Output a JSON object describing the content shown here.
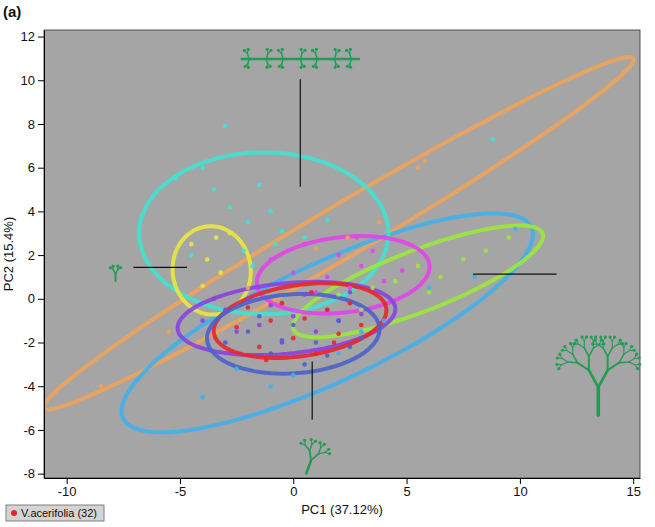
{
  "chart_data": {
    "type": "scatter",
    "panel_label": "(a)",
    "x_label": "PC1 (37.12%)",
    "y_label": "PC2 (15.4%)",
    "xlim": [
      -11,
      15.3
    ],
    "ylim": [
      -8.2,
      12.3
    ],
    "xticks": [
      -10,
      -5,
      0,
      5,
      10,
      15
    ],
    "yticks": [
      -8,
      -6,
      -4,
      -2,
      0,
      2,
      4,
      6,
      8,
      10,
      12
    ],
    "grid": false,
    "legend": "bottom-left",
    "marker": "circle",
    "series": [
      {
        "color": "#f0a35a",
        "x": [
          -5.5,
          -2,
          1,
          3.8,
          5.5,
          5.8,
          -8.5,
          2.4
        ],
        "y": [
          -1.5,
          0.5,
          2.3,
          3.5,
          6,
          6.3,
          -4,
          2.8
        ],
        "ellipse": {
          "center": [
            2,
            3
          ],
          "axis1": [
            13,
            8
          ],
          "axis2": [
            -0.6,
            1.0
          ]
        }
      },
      {
        "color": "#3fb0ec",
        "x": [
          -4,
          -2.5,
          0,
          2,
          4,
          6,
          8,
          -1,
          3,
          9.8
        ],
        "y": [
          -4.5,
          -3.2,
          -3.5,
          -2.5,
          -1,
          0.5,
          1,
          -4,
          -1.5,
          3.2
        ],
        "ellipse": {
          "center": [
            1.5,
            -1.1
          ],
          "axis1": [
            9,
            4.4
          ],
          "axis2": [
            -1.2,
            2.4
          ]
        }
      },
      {
        "color": "#3fe3d2",
        "x": [
          -4,
          -3.5,
          -2.8,
          -2,
          -1.5,
          -1,
          -0.5,
          0.5,
          1.5,
          -4.5,
          -3,
          -2.2,
          -5.2,
          -1.8,
          -0.8,
          8.8
        ],
        "y": [
          6,
          5,
          4.2,
          3.5,
          5.2,
          4,
          3.1,
          2.8,
          3.6,
          2,
          7.9,
          2.2,
          5.5,
          1.5,
          2.5,
          7.3
        ],
        "ellipse": {
          "center": [
            -1.3,
            3
          ],
          "axis1": [
            5.5,
            0
          ],
          "axis2": [
            0,
            3.7
          ]
        }
      },
      {
        "color": "#e9e83e",
        "x": [
          -4.5,
          -3.8,
          -3.2,
          -2.8,
          -4,
          -3.4
        ],
        "y": [
          2.5,
          1.8,
          1.2,
          3,
          0.6,
          2.8
        ],
        "ellipse": {
          "center": [
            -3.6,
            1.3
          ],
          "axis1": [
            1.7,
            0.3
          ],
          "axis2": [
            -0.3,
            2
          ]
        }
      },
      {
        "color": "#9de83c",
        "x": [
          2,
          3.5,
          4.5,
          5.5,
          6.5,
          7.5,
          8.5,
          9.5,
          3,
          6
        ],
        "y": [
          0.2,
          0.5,
          0.8,
          1.5,
          1,
          1.8,
          2.2,
          2.8,
          -0.5,
          0.3
        ],
        "ellipse": {
          "center": [
            5.5,
            0.8
          ],
          "axis1": [
            5.5,
            2.2
          ],
          "axis2": [
            -0.5,
            1.3
          ]
        }
      },
      {
        "color": "#e444e8",
        "x": [
          -1,
          0,
          0.5,
          1.5,
          2,
          2.5,
          3,
          3.5,
          4,
          1,
          2.8,
          4.8
        ],
        "y": [
          1.8,
          1.2,
          2.5,
          1,
          2,
          0.5,
          1.5,
          2.2,
          0.8,
          0.3,
          2.8,
          1.3
        ],
        "ellipse": {
          "center": [
            2.2,
            1.1
          ],
          "axis1": [
            3.8,
            0.5
          ],
          "axis2": [
            -0.3,
            1.7
          ]
        }
      },
      {
        "color": "#8a42e0",
        "x": [
          -4,
          -3,
          -2.5,
          -2,
          -1.5,
          -1,
          -0.5,
          0,
          0.5,
          1,
          1.5,
          2,
          2.5,
          3,
          -3.5
        ],
        "y": [
          -1,
          -0.5,
          -1.5,
          0,
          -1.2,
          -0.3,
          -2,
          -0.8,
          0.2,
          -1.5,
          -0.5,
          -1,
          0.3,
          -0.7,
          0
        ],
        "ellipse": {
          "center": [
            -0.3,
            -0.9
          ],
          "axis1": [
            4.8,
            0.5
          ],
          "axis2": [
            -0.2,
            1.6
          ]
        }
      },
      {
        "name": "V.acerifolia (32)",
        "color": "#e8262a",
        "x": [
          -2.5,
          -2,
          -1.5,
          -1,
          -0.5,
          0,
          0.5,
          1,
          1.5,
          2,
          2.5,
          3,
          -1.2,
          0.8,
          1.8
        ],
        "y": [
          -1.3,
          -0.4,
          -2.2,
          -1,
          -0.2,
          -1.8,
          -0.9,
          -2.5,
          -0.5,
          -1.6,
          -0.2,
          -1.2,
          -2.8,
          0.3,
          -2
        ],
        "ellipse": {
          "center": [
            0.3,
            -1
          ],
          "axis1": [
            3.8,
            0.6
          ],
          "axis2": [
            -0.3,
            1.6
          ]
        }
      },
      {
        "color": "#4a62cc",
        "x": [
          -3,
          -2,
          -1,
          0,
          1,
          2,
          3,
          -1.5,
          0.5,
          1.5,
          -0.5,
          2.5
        ],
        "y": [
          -2,
          -1.5,
          -2.5,
          -1.2,
          -2,
          -1,
          -1.8,
          -0.8,
          -3,
          -2.6,
          -1.9,
          -2.2
        ],
        "ellipse": {
          "center": [
            0,
            -1.6
          ],
          "axis1": [
            3.8,
            0.3
          ],
          "axis2": [
            -0.2,
            1.8
          ]
        }
      }
    ]
  }
}
